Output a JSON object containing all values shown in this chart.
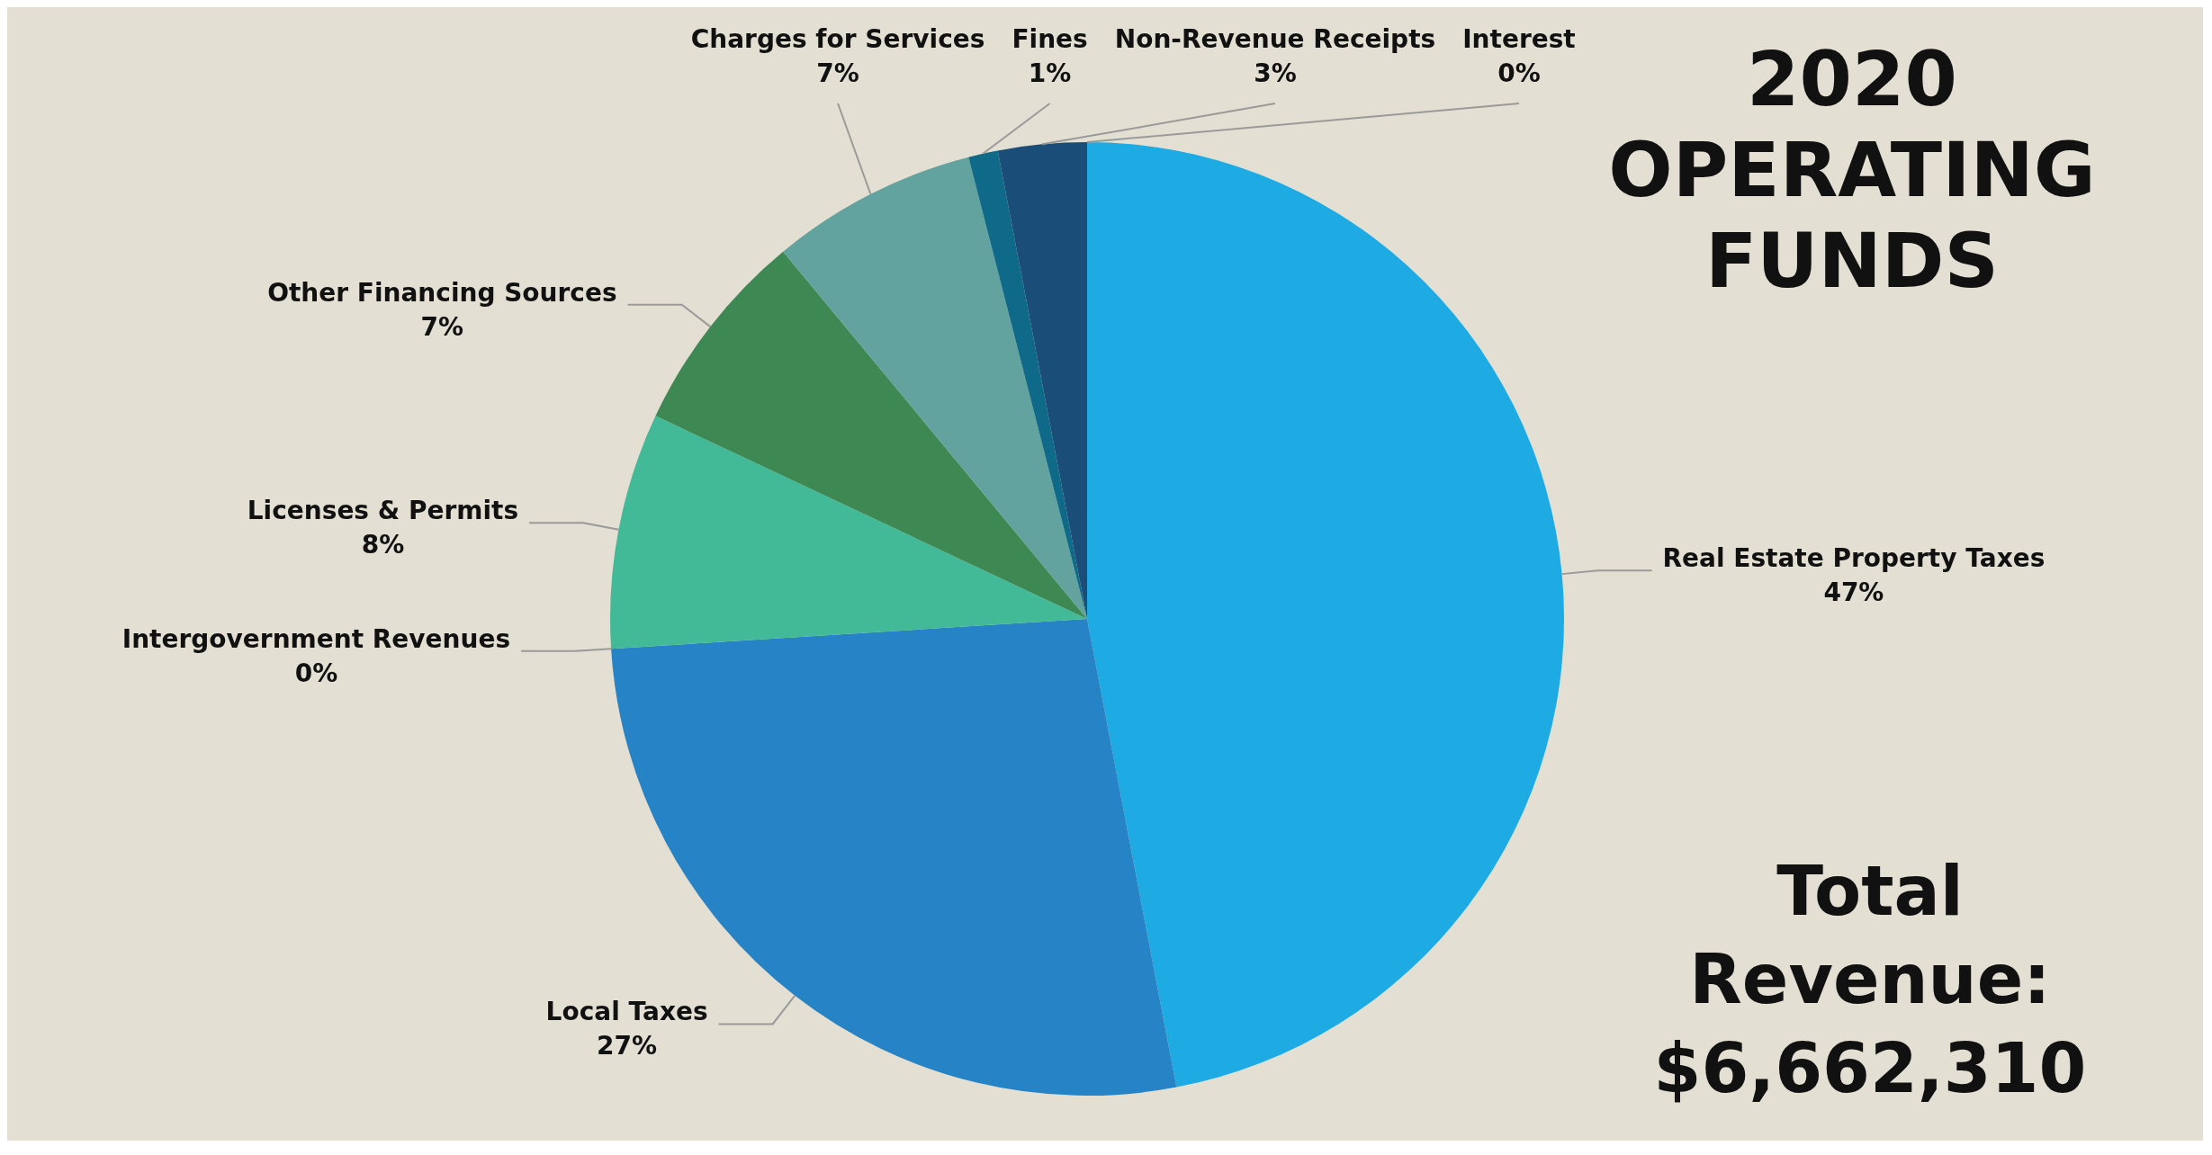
{
  "chart_data": {
    "type": "pie",
    "title": "2020 OPERATING FUNDS",
    "categories": [
      "Real Estate Property Taxes",
      "Local Taxes",
      "Intergovernment Revenues",
      "Licenses & Permits",
      "Other Financing Sources",
      "Charges for Services",
      "Fines",
      "Non-Revenue Receipts",
      "Interest"
    ],
    "values": [
      47,
      27,
      0,
      8,
      7,
      7,
      1,
      3,
      0
    ],
    "colors": [
      "#1eabe3",
      "#2683c6",
      "#1c5a8a",
      "#42ba97",
      "#3e8853",
      "#62a39f",
      "#0f6a8a",
      "#1a4e78",
      "#2a6f68"
    ],
    "value_labels": [
      "47%",
      "27%",
      "0%",
      "8%",
      "7%",
      "7%",
      "1%",
      "3%",
      "0%"
    ],
    "annotations": [
      "Total Revenue: $6,662,310"
    ]
  }
}
